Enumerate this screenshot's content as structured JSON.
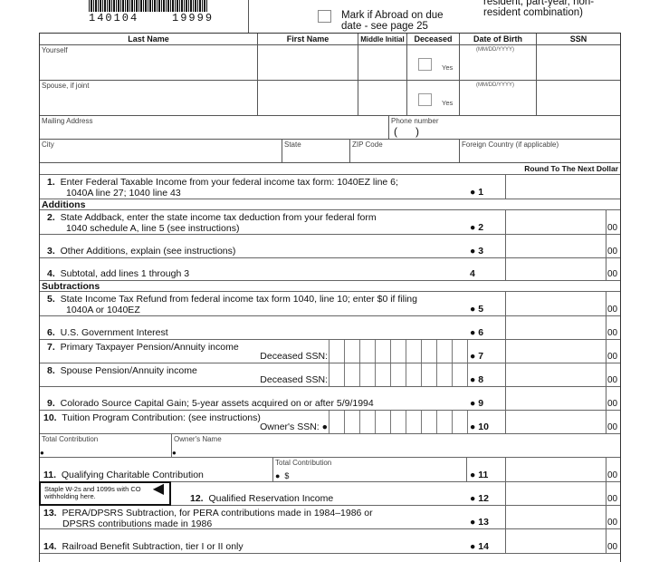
{
  "header": {
    "barcode_number": "140104    19999",
    "abroad_label": "Mark if Abroad on due date - see page 25",
    "residency_note": "resident, part-year, non-resident combination)"
  },
  "table": {
    "columns": [
      "Last Name",
      "First Name",
      "Middle Initial",
      "Deceased",
      "Date of Birth",
      "SSN"
    ],
    "rows": [
      {
        "label": "Yourself",
        "deceased": "Yes",
        "dob_hint": "(MM/DD/YYYY)"
      },
      {
        "label": "Spouse, if joint",
        "deceased": "Yes",
        "dob_hint": "(MM/DD/YYYY)"
      }
    ],
    "mailing_address": "Mailing Address",
    "phone": "Phone number",
    "phone_parens": "(      )",
    "city": "City",
    "state": "State",
    "zip": "ZIP Code",
    "foreign": "Foreign Country (if applicable)"
  },
  "round_note": "Round To The Next Dollar",
  "sections": {
    "additions": "Additions",
    "subtractions": "Subtractions"
  },
  "cents": "00",
  "lines": [
    {
      "num": "1.",
      "text": "Enter Federal Taxable Income from your federal income tax form: 1040EZ line 6;",
      "text2": "1040A line 27; 1040 line 43",
      "ref": "● 1"
    },
    {
      "num": "2.",
      "text": "State Addback, enter the state income tax deduction from your federal form",
      "text2": "1040 schedule A, line 5 (see instructions)",
      "ref": "● 2"
    },
    {
      "num": "3.",
      "text": "Other Additions, explain (see instructions)",
      "ref": "● 3"
    },
    {
      "num": "4.",
      "text": "Subtotal, add lines 1 through 3",
      "ref": "4"
    },
    {
      "num": "5.",
      "text": "State Income Tax Refund from federal income tax form 1040, line 10; enter $0 if filing",
      "text2": "1040A or 1040EZ",
      "ref": "● 5"
    },
    {
      "num": "6.",
      "text": "U.S. Government Interest",
      "ref": "● 6"
    },
    {
      "num": "7.",
      "text": "Primary Taxpayer Pension/Annuity income",
      "text2": "Deceased SSN:",
      "ref": "● 7"
    },
    {
      "num": "8.",
      "text": "Spouse Pension/Annuity income",
      "text2": "Deceased SSN:",
      "ref": "● 8"
    },
    {
      "num": "9.",
      "text": "Colorado Source Capital Gain; 5-year assets acquired on or after 5/9/1994",
      "ref": "● 9"
    },
    {
      "num": "10.",
      "text": "Tuition Program Contribution: (see instructions)",
      "text2": "Owner's SSN: ●",
      "ref": "● 10"
    },
    {
      "num": "11.",
      "text": "Qualifying Charitable Contribution",
      "ref": "● 11"
    },
    {
      "num": "12.",
      "text": "Qualified Reservation Income",
      "ref": "● 12"
    },
    {
      "num": "13.",
      "text": "PERA/DPSRS Subtraction, for PERA contributions made in 1984–1986 or",
      "text2": "DPSRS contributions made in 1986",
      "ref": "● 13"
    },
    {
      "num": "14.",
      "text": "Railroad Benefit Subtraction, tier I or II only",
      "ref": "● 14"
    }
  ],
  "line10_fields": {
    "total": "Total Contribution",
    "owner": "Owner's Name",
    "bullet": "●"
  },
  "line11_field": {
    "label": "Total Contribution",
    "value": "●  $"
  },
  "staple": {
    "text": "Staple W-2s and 1099s with CO withholding here.",
    "arrow": "◀"
  }
}
